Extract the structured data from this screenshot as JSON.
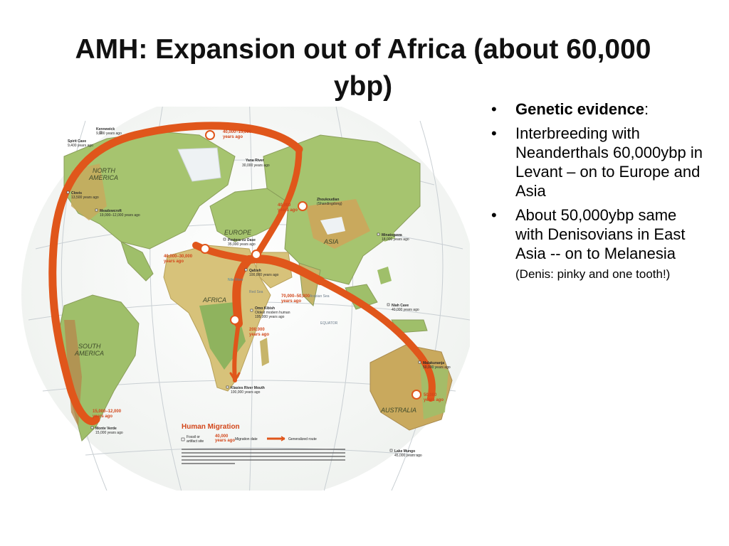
{
  "slide": {
    "title_line1": "AMH: Expansion out of Africa (about 60,000",
    "title_line2": "ybp)"
  },
  "bullets": {
    "b1_bold": "Genetic evidence",
    "b1_rest": ":",
    "b2": "Interbreeding with Neanderthals 60,000ybp in Levant – on to Europe and Asia",
    "b3_main": "About 50,000ybp same with Denisovians in East Asia --  on to Melanesia ",
    "b3_small": "(Denis: pinky and one tooth!)"
  },
  "map": {
    "regions": {
      "north_america_1": "NORTH",
      "north_america_2": "AMERICA",
      "south_america_1": "SOUTH",
      "south_america_2": "AMERICA",
      "europe": "EUROPE",
      "asia": "ASIA",
      "africa": "AFRICA",
      "australia": "AUSTRALIA",
      "equator": "EQUATOR",
      "nile": "Nile River",
      "red_sea": "Red Sea",
      "arabian_sea": "Arabian Sea"
    },
    "dates": {
      "d1_a": "40,000–15,000",
      "d1_b": "years ago",
      "d2_a": "40,000",
      "d2_b": "years ago",
      "d3_a": "40,000–30,000",
      "d3_b": "years ago",
      "d4_a": "70,000–50,000",
      "d4_b": "years ago",
      "d5_a": "200,000",
      "d5_b": "years ago",
      "d6_a": "50,000",
      "d6_b": "years ago",
      "d7_a": "15,000–12,000",
      "d7_b": "years ago"
    },
    "sites": {
      "kennewick_a": "Kennewick",
      "kennewick_b": "9,300 years ago",
      "spirit_a": "Spirit Cave",
      "spirit_b": "9,400 years ago",
      "clovis_a": "Clovis",
      "clovis_b": "13,500 years ago",
      "meadowcroft_a": "Meadowcroft",
      "meadowcroft_b": "19,000–12,000 years ago",
      "yana_a": "Yana River",
      "yana_b": "30,000 years ago",
      "zhoukoudian_a": "Zhoukoudian",
      "zhoukoudian_b": "(Shandingdong)",
      "minatogawa_a": "Minatogawa",
      "minatogawa_b": "18,000 years ago",
      "pestera_a": "Pestera cu Oase",
      "pestera_b": "35,000 years ago",
      "qafzeh_a": "Qafzeh",
      "qafzeh_b": "100,000 years ago",
      "omo_a": "Omo Kibish",
      "omo_b": "Oldest modern human",
      "omo_c": "195,000 years ago",
      "niah_a": "Niah Cave",
      "niah_b": "40,000 years ago",
      "malakunanja_a": "Malakunanja",
      "malakunanja_b": "50,000 years ago",
      "klasies_a": "Klasies River Mouth",
      "klasies_b": "100,000 years ago",
      "monte_a": "Monte Verde",
      "monte_b": "15,000 years ago",
      "mungo_a": "Lake Mungo",
      "mungo_b": "45,000 years ago"
    },
    "legend": {
      "title": "Human Migration",
      "fossil_a": "Fossil or",
      "fossil_b": "artifact site",
      "date_a": "40,000",
      "date_b": "years ago",
      "date_label": "Migration date",
      "route_label": "Generalized route"
    },
    "colors": {
      "route": "#e0561b",
      "route_light": "#f28a4a",
      "ocean": "#f4f6f4",
      "land_green": "#9fbf6a",
      "land_tan": "#d7c27a",
      "land_brown": "#b58a4e",
      "ice": "#eef2f4"
    }
  }
}
